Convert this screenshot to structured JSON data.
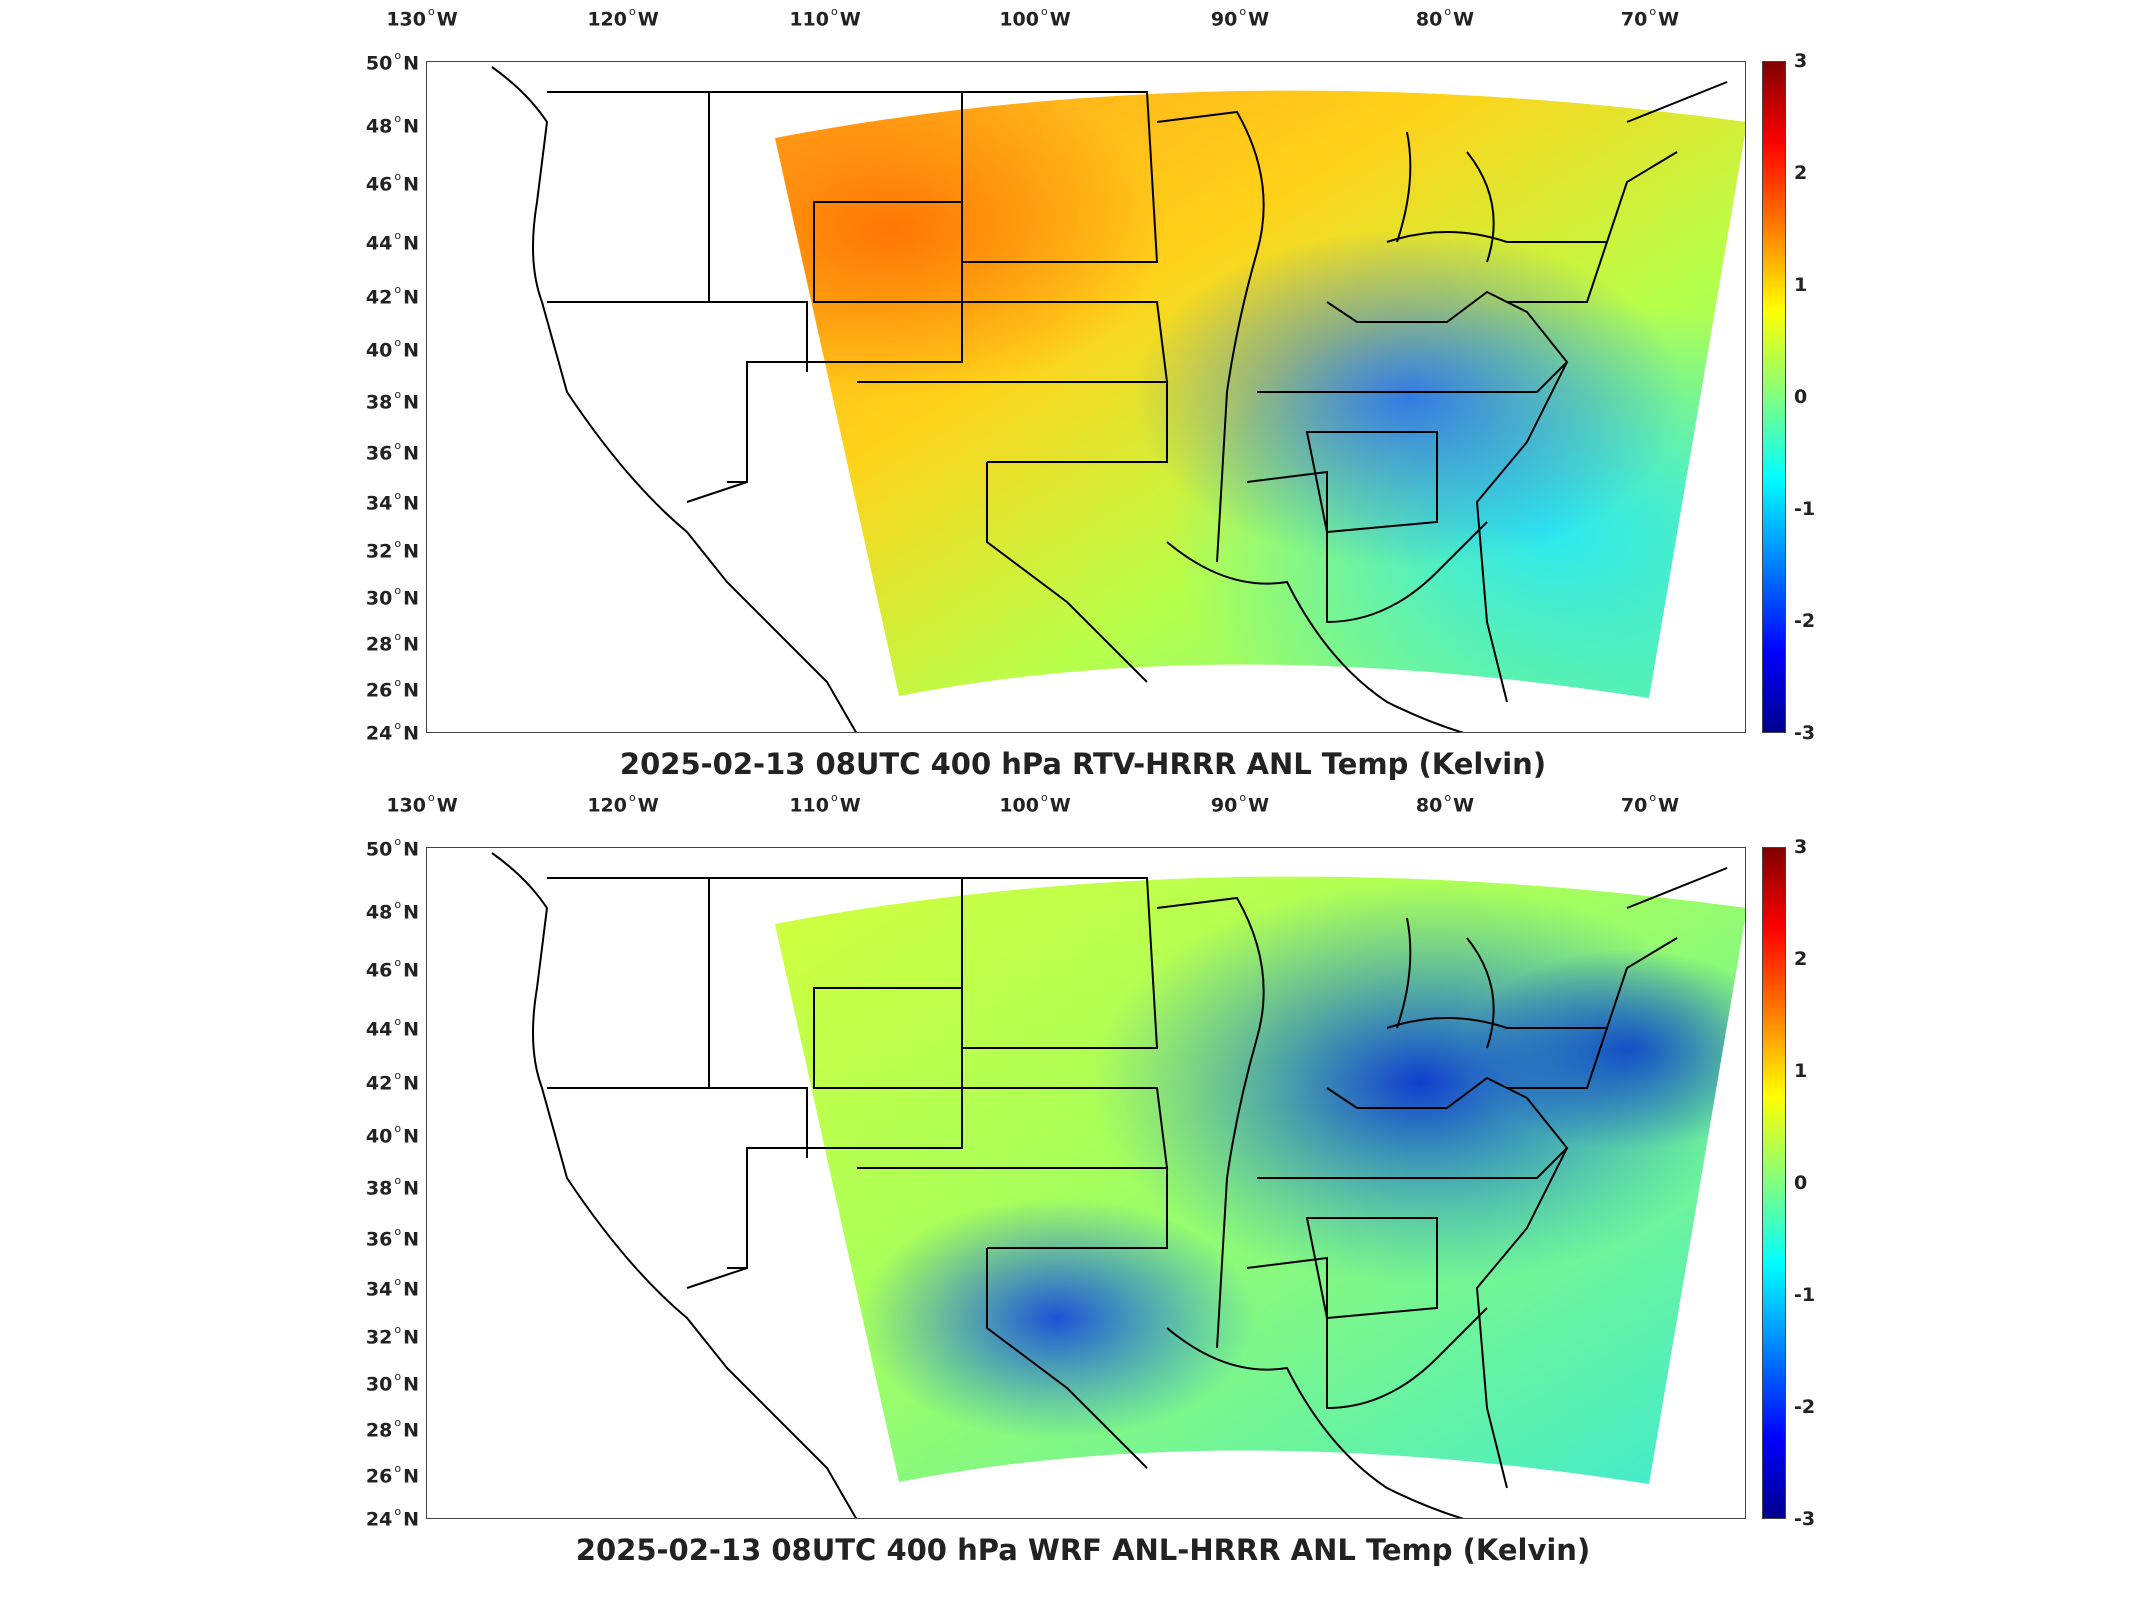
{
  "colors": {
    "outline": "#000000",
    "frame": "#444444"
  },
  "panels": [
    {
      "title": "2025-02-13 08UTC 400 hPa RTV-HRRR ANL Temp (Kelvin)",
      "lon_ticks": [
        "130",
        "120",
        "110",
        "100",
        "90",
        "80",
        "70"
      ],
      "lon_suffix": "W",
      "lat_ticks": [
        "50",
        "48",
        "46",
        "44",
        "42",
        "40",
        "38",
        "36",
        "34",
        "32",
        "30",
        "28",
        "26",
        "24"
      ],
      "lat_suffix": "N",
      "colorbar": {
        "ticks": [
          "3",
          "2",
          "1",
          "0",
          "-1",
          "-2",
          "-3"
        ],
        "colormap": "jet"
      }
    },
    {
      "title": "2025-02-13 08UTC 400 hPa WRF ANL-HRRR ANL Temp (Kelvin)",
      "lon_ticks": [
        "130",
        "120",
        "110",
        "100",
        "90",
        "80",
        "70"
      ],
      "lon_suffix": "W",
      "lat_ticks": [
        "50",
        "48",
        "46",
        "44",
        "42",
        "40",
        "38",
        "36",
        "34",
        "32",
        "30",
        "28",
        "26",
        "24"
      ],
      "lat_suffix": "N",
      "colorbar": {
        "ticks": [
          "3",
          "2",
          "1",
          "0",
          "-1",
          "-2",
          "-3"
        ],
        "colormap": "jet"
      }
    }
  ]
}
